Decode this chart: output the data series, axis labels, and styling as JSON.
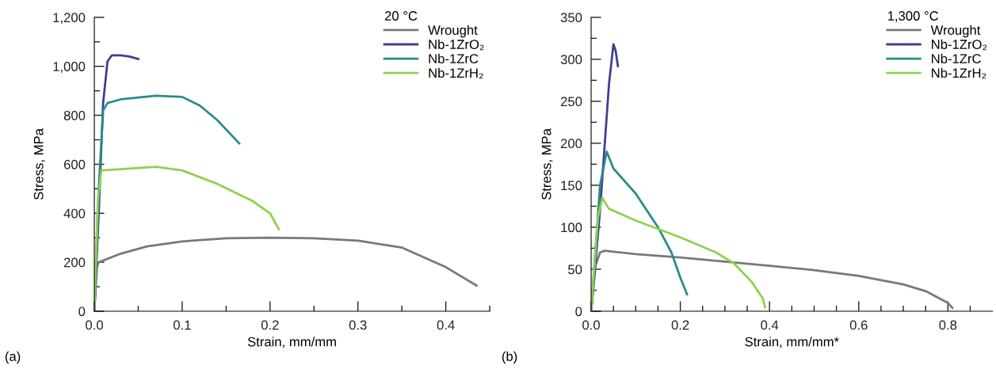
{
  "chart_data": [
    {
      "type": "line",
      "xlabel": "Strain, mm/mm",
      "ylabel": "Stress, MPa",
      "legend_title": "20 °C",
      "legend": "top right",
      "grid": false,
      "marker": "none",
      "line_style": "solid",
      "xlim": [
        0,
        0.45
      ],
      "ylim": [
        0,
        1200
      ],
      "xticks": [
        {
          "value": 0,
          "label": "0.0"
        },
        {
          "value": 0.05,
          "label": null
        },
        0.1,
        {
          "value": 0.15,
          "label": null
        },
        0.2,
        {
          "value": 0.25,
          "label": null
        },
        0.3,
        {
          "value": 0.35,
          "label": null
        },
        0.4,
        {
          "value": 0.45,
          "label": null
        }
      ],
      "yticks": [
        0,
        {
          "value": 100,
          "label": null
        },
        200,
        {
          "value": 300,
          "label": null
        },
        400,
        {
          "value": 500,
          "label": null
        },
        600,
        {
          "value": 700,
          "label": null
        },
        800,
        {
          "value": 900,
          "label": null
        },
        {
          "value": 1000,
          "label": "1,000"
        },
        {
          "value": 1100,
          "label": null
        },
        {
          "value": 1200,
          "label": "1,200"
        }
      ],
      "annotations": [
        "(a)"
      ],
      "series": [
        {
          "name": "Wrought",
          "color": "#7b7878",
          "x": [
            0,
            0.003,
            0.005,
            0.03,
            0.06,
            0.1,
            0.15,
            0.2,
            0.25,
            0.3,
            0.35,
            0.4,
            0.435
          ],
          "values": [
            0,
            180,
            200,
            235,
            265,
            285,
            298,
            300,
            298,
            288,
            260,
            180,
            105
          ]
        },
        {
          "name": "Nb-1ZrO₂",
          "color": "#3f3f91",
          "x": [
            0,
            0.005,
            0.01,
            0.015,
            0.02,
            0.03,
            0.04,
            0.05
          ],
          "values": [
            0,
            400,
            850,
            1020,
            1045,
            1045,
            1040,
            1030
          ]
        },
        {
          "name": "Nb-1ZrC",
          "color": "#2a8c8c",
          "x": [
            0,
            0.005,
            0.01,
            0.015,
            0.03,
            0.07,
            0.1,
            0.12,
            0.14,
            0.165
          ],
          "values": [
            0,
            500,
            820,
            850,
            865,
            880,
            875,
            840,
            780,
            685
          ]
        },
        {
          "name": "Nb-1ZrH₂",
          "color": "#8fd14f",
          "x": [
            0,
            0.004,
            0.008,
            0.03,
            0.07,
            0.1,
            0.14,
            0.18,
            0.2,
            0.21
          ],
          "values": [
            0,
            450,
            575,
            580,
            590,
            575,
            520,
            450,
            400,
            335
          ]
        }
      ]
    },
    {
      "type": "line",
      "xlabel": "Strain, mm/mm*",
      "ylabel": "Stress, MPa",
      "legend_title": "1,300 °C",
      "legend": "top right",
      "grid": false,
      "marker": "none",
      "line_style": "solid",
      "xlim": [
        0,
        0.9
      ],
      "ylim": [
        0,
        350
      ],
      "xticks": [
        {
          "value": 0,
          "label": "0.0"
        },
        {
          "value": 0.05,
          "label": null
        },
        {
          "value": 0.1,
          "label": null
        },
        {
          "value": 0.15,
          "label": null
        },
        0.2,
        {
          "value": 0.25,
          "label": null
        },
        {
          "value": 0.3,
          "label": null
        },
        {
          "value": 0.35,
          "label": null
        },
        0.4,
        {
          "value": 0.45,
          "label": null
        },
        {
          "value": 0.5,
          "label": null
        },
        {
          "value": 0.55,
          "label": null
        },
        0.6,
        {
          "value": 0.65,
          "label": null
        },
        {
          "value": 0.7,
          "label": null
        },
        {
          "value": 0.75,
          "label": null
        },
        0.8,
        {
          "value": 0.85,
          "label": null
        }
      ],
      "yticks": [
        0,
        {
          "value": 25,
          "label": null
        },
        50,
        {
          "value": 75,
          "label": null
        },
        100,
        {
          "value": 125,
          "label": null
        },
        150,
        {
          "value": 175,
          "label": null
        },
        200,
        {
          "value": 225,
          "label": null
        },
        250,
        {
          "value": 275,
          "label": null
        },
        300,
        {
          "value": 325,
          "label": null
        },
        350
      ],
      "annotations": [
        "(b)"
      ],
      "series": [
        {
          "name": "Wrought",
          "color": "#7b7878",
          "x": [
            0,
            0.01,
            0.02,
            0.03,
            0.1,
            0.2,
            0.3,
            0.4,
            0.5,
            0.6,
            0.7,
            0.75,
            0.8,
            0.81
          ],
          "values": [
            0,
            55,
            70,
            72,
            68,
            64,
            59,
            54,
            49,
            42,
            32,
            24,
            10,
            4
          ]
        },
        {
          "name": "Nb-1ZrO₂",
          "color": "#3f3f91",
          "x": [
            0,
            0.02,
            0.04,
            0.05,
            0.055,
            0.06
          ],
          "values": [
            0,
            120,
            270,
            318,
            310,
            292
          ]
        },
        {
          "name": "Nb-1ZrC",
          "color": "#2a8c8c",
          "x": [
            0,
            0.02,
            0.035,
            0.05,
            0.1,
            0.15,
            0.18,
            0.2,
            0.215
          ],
          "values": [
            0,
            150,
            190,
            170,
            140,
            100,
            70,
            40,
            20
          ]
        },
        {
          "name": "Nb-1ZrH₂",
          "color": "#8fd14f",
          "x": [
            0,
            0.015,
            0.025,
            0.04,
            0.1,
            0.2,
            0.28,
            0.32,
            0.36,
            0.385,
            0.39
          ],
          "values": [
            0,
            110,
            135,
            122,
            108,
            88,
            70,
            57,
            35,
            15,
            5
          ]
        }
      ]
    }
  ]
}
